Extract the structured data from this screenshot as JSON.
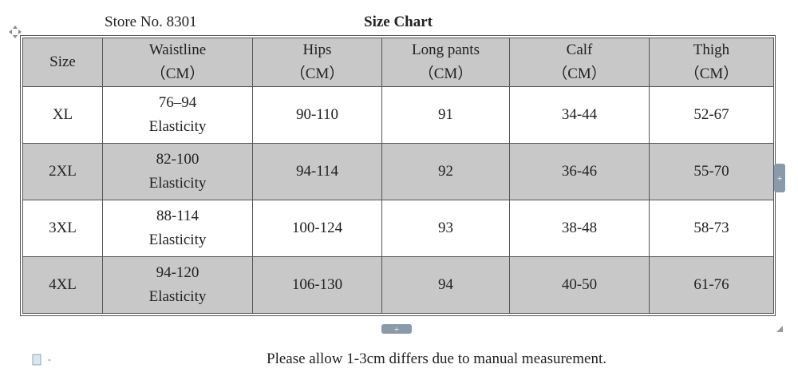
{
  "header": {
    "store": "Store No. 8301",
    "title": "Size Chart"
  },
  "table": {
    "header": [
      [
        "Size"
      ],
      [
        "Waistline",
        "（CM）"
      ],
      [
        "Hips",
        "（CM）"
      ],
      [
        "Long pants",
        "（CM）"
      ],
      [
        "Calf",
        "（CM）"
      ],
      [
        "Thigh",
        "（CM）"
      ]
    ],
    "rows": [
      [
        [
          "XL"
        ],
        [
          "76–94",
          "Elasticity"
        ],
        [
          "90-110"
        ],
        [
          "91"
        ],
        [
          "34-44"
        ],
        [
          "52-67"
        ]
      ],
      [
        [
          "2XL"
        ],
        [
          "82-100",
          "Elasticity"
        ],
        [
          "94-114"
        ],
        [
          "92"
        ],
        [
          "36-46"
        ],
        [
          "55-70"
        ]
      ],
      [
        [
          "3XL"
        ],
        [
          "88-114",
          "Elasticity"
        ],
        [
          "100-124"
        ],
        [
          "93"
        ],
        [
          "38-48"
        ],
        [
          "58-73"
        ]
      ],
      [
        [
          "4XL"
        ],
        [
          "94-120",
          "Elasticity"
        ],
        [
          "106-130"
        ],
        [
          "94"
        ],
        [
          "40-50"
        ],
        [
          "61-76"
        ]
      ]
    ]
  },
  "footer": {
    "note": "Please allow 1-3cm differs due to manual measurement."
  }
}
